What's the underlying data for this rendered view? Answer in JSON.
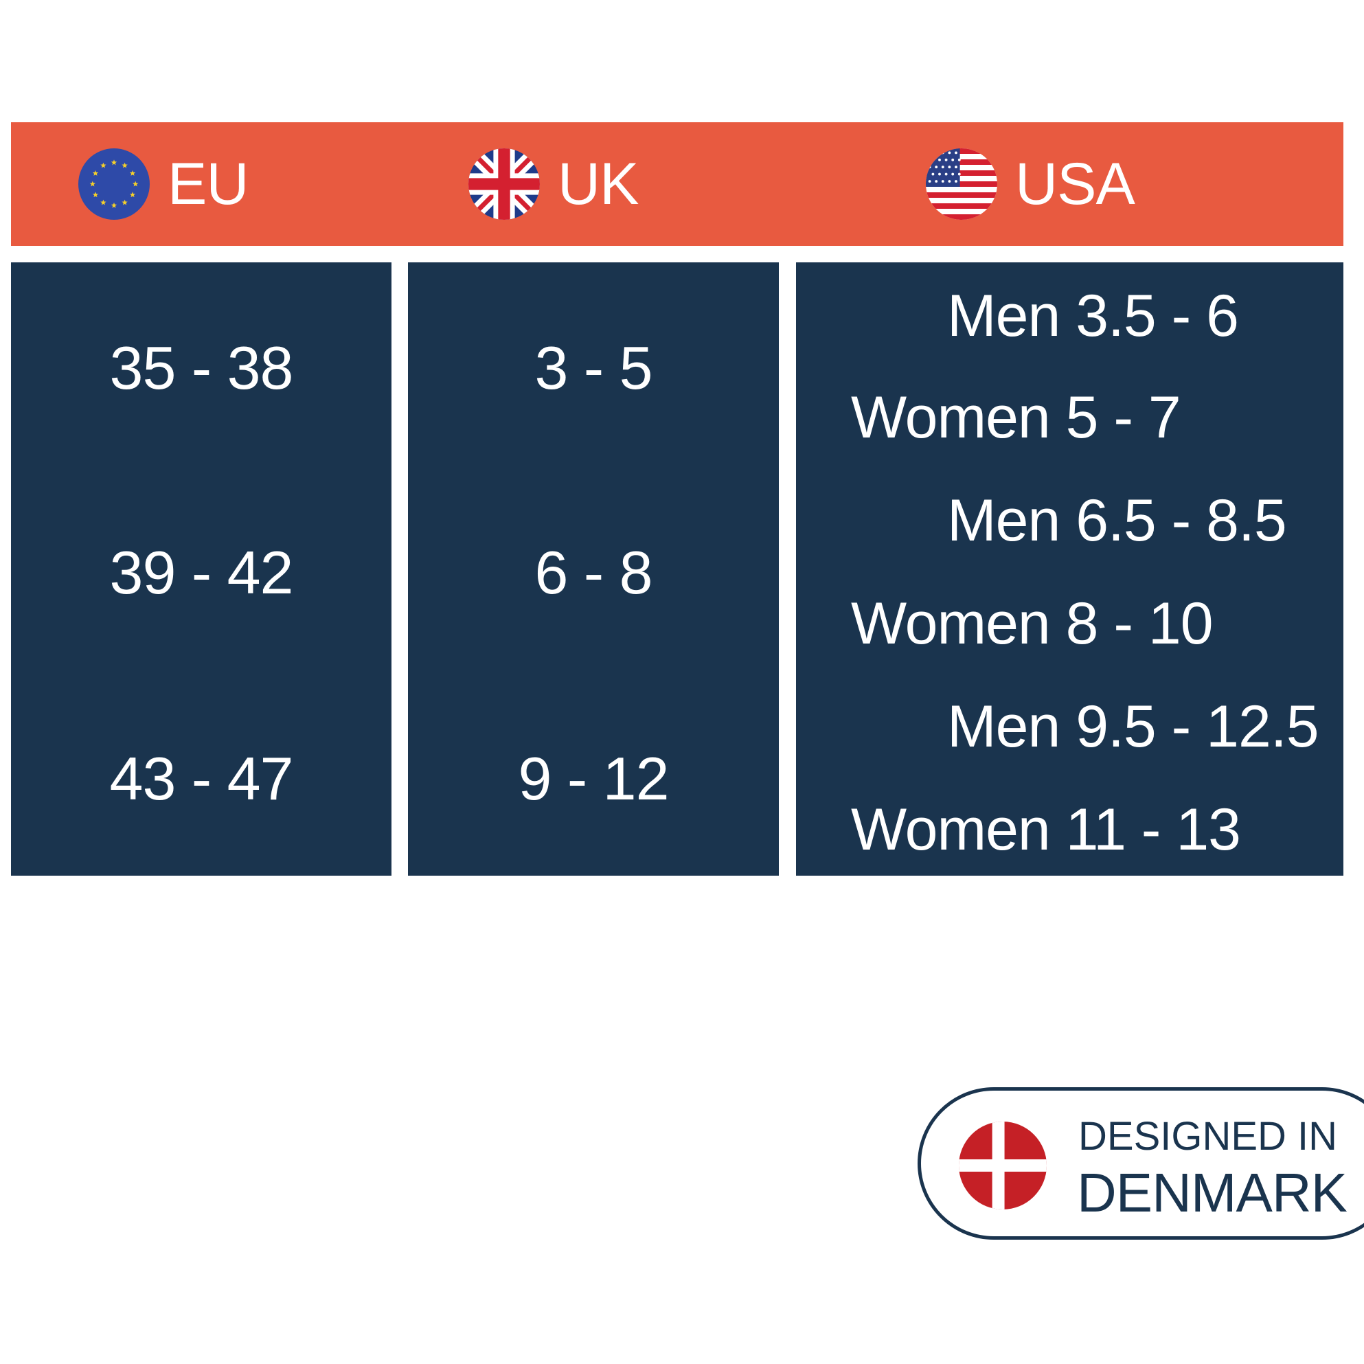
{
  "header": {
    "columns": [
      {
        "label": "EU",
        "flag_icon": "eu-flag-icon"
      },
      {
        "label": "UK",
        "flag_icon": "uk-flag-icon"
      },
      {
        "label": "USA",
        "flag_icon": "usa-flag-icon"
      }
    ]
  },
  "sizes": {
    "eu": [
      "35 - 38",
      "39 - 42",
      "43 - 47"
    ],
    "uk": [
      "3 - 5",
      "6 - 8",
      "9 - 12"
    ],
    "usa": [
      {
        "men": "Men 3.5 - 6",
        "women": "Women 5 - 7"
      },
      {
        "men": "Men 6.5 - 8.5",
        "women": "Women 8 - 10"
      },
      {
        "men": "Men 9.5 - 12.5",
        "women": "Women 11 - 13"
      }
    ]
  },
  "badge": {
    "line1": "DESIGNED IN",
    "line2": "DENMARK",
    "flag_icon": "denmark-flag-icon"
  },
  "colors": {
    "header": "#e85a40",
    "cells": "#1a344e",
    "text": "#ffffff",
    "danish_red": "#c52026"
  }
}
